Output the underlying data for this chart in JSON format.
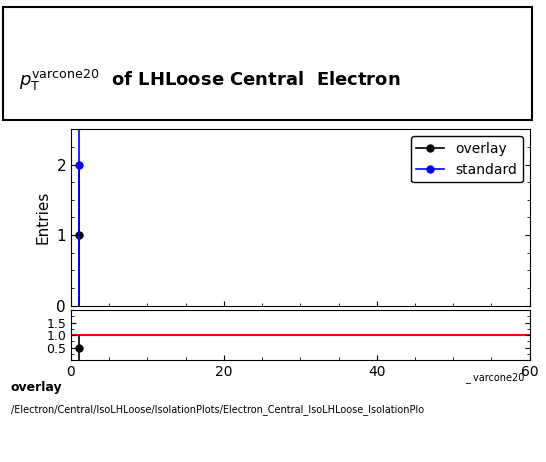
{
  "title_text": "$p_{T}^{\\mathrm{varcone20}}$ of LHLoose Central  Electron",
  "xlabel": "_ varcone20",
  "ylabel_main": "Entries",
  "xlim": [
    0,
    60
  ],
  "ylim_main": [
    0,
    2.5
  ],
  "ylim_ratio": [
    0.0,
    2.0
  ],
  "yticks_main": [
    0,
    1,
    2
  ],
  "yticks_ratio": [
    0.5,
    1.0,
    1.5
  ],
  "overlay_x": [
    1.0
  ],
  "overlay_y": [
    1.0
  ],
  "overlay_yerr_lo": [
    1.0
  ],
  "overlay_yerr_hi": [
    1.0
  ],
  "standard_x": [
    1.0
  ],
  "standard_y": [
    2.0
  ],
  "standard_yerr_lo": [
    2.0
  ],
  "standard_yerr_hi": [
    0.5
  ],
  "ratio_x": [
    1.0
  ],
  "ratio_y": [
    0.5
  ],
  "ratio_yerr_lo": [
    0.5
  ],
  "ratio_yerr_hi": [
    0.5
  ],
  "ratio_line_y": 1.0,
  "overlay_color": "#000000",
  "standard_color": "#0000ff",
  "ratio_color": "#000000",
  "ratio_line_color": "#ff0000",
  "marker_size": 5,
  "footer_bold": "overlay",
  "footer_path": "/Electron/Central/IsoLHLoose/IsolationPlots/Electron_Central_IsoLHLoose_IsolationPlo",
  "legend_entries": [
    "overlay",
    "standard"
  ],
  "background_color": "#ffffff",
  "xticks": [
    0,
    20,
    40,
    60
  ],
  "minor_xtick_interval": 5,
  "minor_ytick_interval_main": 0.25,
  "minor_ytick_interval_ratio": 0.25
}
